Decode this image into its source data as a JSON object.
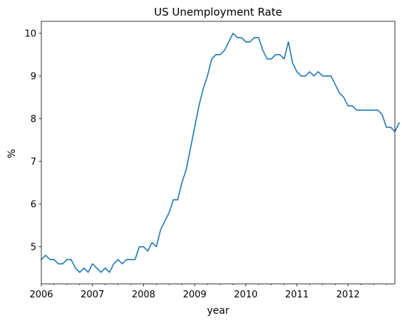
{
  "chart_data": {
    "type": "line",
    "title": "US Unemployment Rate",
    "xlabel": "year",
    "ylabel": "%",
    "x_start": "2006-01",
    "x_end": "2012-12",
    "xlim": [
      "2006-01",
      "2012-12"
    ],
    "ylim": [
      4.13,
      10.28
    ],
    "x_ticks": [
      "2006",
      "2007",
      "2008",
      "2009",
      "2010",
      "2011",
      "2012"
    ],
    "y_ticks": [
      "5",
      "6",
      "7",
      "8",
      "9",
      "10"
    ],
    "grid": false,
    "legend": "none",
    "color": "#1f77b4",
    "series": [
      {
        "values": [
          4.7,
          4.8,
          4.7,
          4.7,
          4.6,
          4.6,
          4.7,
          4.7,
          4.5,
          4.4,
          4.5,
          4.4,
          4.6,
          4.5,
          4.4,
          4.5,
          4.4,
          4.6,
          4.7,
          4.6,
          4.7,
          4.7,
          4.7,
          5.0,
          5.0,
          4.9,
          5.1,
          5.0,
          5.4,
          5.6,
          5.8,
          6.1,
          6.1,
          6.5,
          6.8,
          7.3,
          7.8,
          8.3,
          8.7,
          9.0,
          9.4,
          9.5,
          9.5,
          9.6,
          9.8,
          10.0,
          9.9,
          9.9,
          9.8,
          9.8,
          9.9,
          9.9,
          9.6,
          9.4,
          9.4,
          9.5,
          9.5,
          9.4,
          9.8,
          9.3,
          9.1,
          9.0,
          9.0,
          9.1,
          9.0,
          9.1,
          9.0,
          9.0,
          9.0,
          8.8,
          8.6,
          8.5,
          8.3,
          8.3,
          8.2,
          8.2,
          8.2,
          8.2,
          8.2,
          8.2,
          8.1,
          7.8,
          7.8,
          7.7,
          7.9
        ]
      }
    ]
  }
}
